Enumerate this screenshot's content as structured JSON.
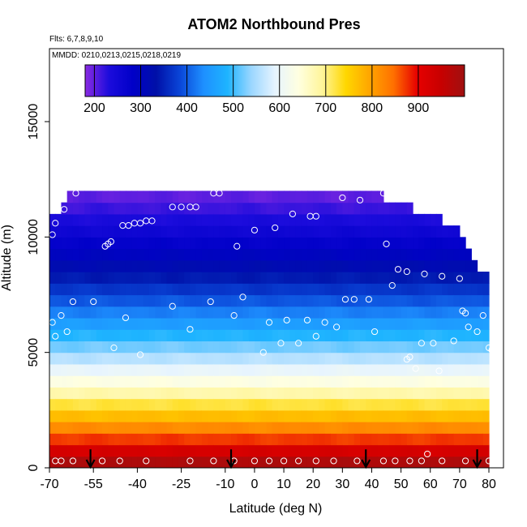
{
  "chart_data": {
    "type": "heatmap",
    "title": "ATOM2 Northbound Pres",
    "subtitle_flights": "Flts: 6,7,8,9,10",
    "subtitle_dates": "MMDD: 0210,0213,0215,0218,0219",
    "xlabel": "Latitude (deg N)",
    "ylabel": "Altitude (m)",
    "xlim": [
      -70,
      85
    ],
    "ylim": [
      0,
      17500
    ],
    "x_ticks": [
      -70,
      -55,
      -40,
      -25,
      -10,
      0,
      10,
      20,
      30,
      40,
      50,
      60,
      70,
      80
    ],
    "x_tick_labels": [
      "-70",
      "-55",
      "-40",
      "-25",
      "-10",
      "0",
      "10",
      "20",
      "30",
      "40",
      "50",
      "60",
      "70",
      "80"
    ],
    "y_ticks": [
      0,
      5000,
      10000,
      15000
    ],
    "y_tick_labels": [
      "0",
      "5000",
      "10000",
      "15000"
    ],
    "colorbar": {
      "min": 180,
      "max": 1000,
      "ticks": [
        200,
        300,
        400,
        500,
        600,
        700,
        800,
        900
      ],
      "tick_labels": [
        "200",
        "300",
        "400",
        "500",
        "600",
        "700",
        "800",
        "900"
      ],
      "colors": [
        "#8a2be2",
        "#1c0cdc",
        "#0000c8",
        "#0010a8",
        "#0a46d8",
        "#1e90ff",
        "#1eb4ff",
        "#9ad6ff",
        "#e6f4ff",
        "#ffffe0",
        "#fff59a",
        "#ffd700",
        "#ffa500",
        "#ff7000",
        "#e60000",
        "#c80000",
        "#a01010"
      ]
    },
    "coverage_top": [
      {
        "lat": -70,
        "alt": 10200
      },
      {
        "lat": -69,
        "alt": 10900
      },
      {
        "lat": -66,
        "alt": 11400
      },
      {
        "lat": -61,
        "alt": 12000
      },
      {
        "lat": -6,
        "alt": 12000
      },
      {
        "lat": 40,
        "alt": 11900
      },
      {
        "lat": 52,
        "alt": 11400
      },
      {
        "lat": 61,
        "alt": 10900
      },
      {
        "lat": 69,
        "alt": 10400
      },
      {
        "lat": 73,
        "alt": 9500
      },
      {
        "lat": 77,
        "alt": 8600
      },
      {
        "lat": 80,
        "alt": 8300
      }
    ],
    "observations": [
      {
        "lat": -69,
        "alt": 10100
      },
      {
        "lat": -68,
        "alt": 10600
      },
      {
        "lat": -65,
        "alt": 11200
      },
      {
        "lat": -61,
        "alt": 11900
      },
      {
        "lat": -51,
        "alt": 9600
      },
      {
        "lat": -50,
        "alt": 9700
      },
      {
        "lat": -49,
        "alt": 9800
      },
      {
        "lat": -45,
        "alt": 10500
      },
      {
        "lat": -43,
        "alt": 10500
      },
      {
        "lat": -41,
        "alt": 10600
      },
      {
        "lat": -39,
        "alt": 10600
      },
      {
        "lat": -37,
        "alt": 10700
      },
      {
        "lat": -35,
        "alt": 10700
      },
      {
        "lat": -28,
        "alt": 11300
      },
      {
        "lat": -25,
        "alt": 11300
      },
      {
        "lat": -22,
        "alt": 11300
      },
      {
        "lat": -20,
        "alt": 11300
      },
      {
        "lat": -14,
        "alt": 11900
      },
      {
        "lat": -12,
        "alt": 11900
      },
      {
        "lat": -6,
        "alt": 9600
      },
      {
        "lat": 0,
        "alt": 10300
      },
      {
        "lat": 7,
        "alt": 10400
      },
      {
        "lat": 13,
        "alt": 11000
      },
      {
        "lat": 19,
        "alt": 10900
      },
      {
        "lat": 21,
        "alt": 10900
      },
      {
        "lat": 30,
        "alt": 11700
      },
      {
        "lat": 36,
        "alt": 11600
      },
      {
        "lat": 44,
        "alt": 11900
      },
      {
        "lat": 45,
        "alt": 9700
      },
      {
        "lat": 47,
        "alt": 7900
      },
      {
        "lat": 49,
        "alt": 8600
      },
      {
        "lat": 52,
        "alt": 8500
      },
      {
        "lat": 58,
        "alt": 8400
      },
      {
        "lat": 64,
        "alt": 8300
      },
      {
        "lat": 70,
        "alt": 8200
      },
      {
        "lat": 76,
        "alt": 9400
      },
      {
        "lat": 84,
        "alt": 9300
      },
      {
        "lat": 86,
        "alt": 8600
      },
      {
        "lat": -69,
        "alt": 6300
      },
      {
        "lat": -68,
        "alt": 5700
      },
      {
        "lat": -66,
        "alt": 6600
      },
      {
        "lat": -64,
        "alt": 5900
      },
      {
        "lat": -62,
        "alt": 7200
      },
      {
        "lat": -55,
        "alt": 7200
      },
      {
        "lat": -48,
        "alt": 5200
      },
      {
        "lat": -44,
        "alt": 6500
      },
      {
        "lat": -39,
        "alt": 4900
      },
      {
        "lat": -28,
        "alt": 7000
      },
      {
        "lat": -22,
        "alt": 6000
      },
      {
        "lat": -15,
        "alt": 7200
      },
      {
        "lat": -7,
        "alt": 6600
      },
      {
        "lat": -4,
        "alt": 7400
      },
      {
        "lat": 3,
        "alt": 5000
      },
      {
        "lat": 5,
        "alt": 6300
      },
      {
        "lat": 9,
        "alt": 5400
      },
      {
        "lat": 11,
        "alt": 6400
      },
      {
        "lat": 15,
        "alt": 5400
      },
      {
        "lat": 18,
        "alt": 6400
      },
      {
        "lat": 21,
        "alt": 5700
      },
      {
        "lat": 24,
        "alt": 6300
      },
      {
        "lat": 28,
        "alt": 6100
      },
      {
        "lat": 31,
        "alt": 7300
      },
      {
        "lat": 34,
        "alt": 7300
      },
      {
        "lat": 39,
        "alt": 7300
      },
      {
        "lat": 41,
        "alt": 5900
      },
      {
        "lat": 52,
        "alt": 4700
      },
      {
        "lat": 53,
        "alt": 4800
      },
      {
        "lat": 55,
        "alt": 4300
      },
      {
        "lat": 57,
        "alt": 5400
      },
      {
        "lat": 61,
        "alt": 5400
      },
      {
        "lat": 63,
        "alt": 4200
      },
      {
        "lat": 68,
        "alt": 5500
      },
      {
        "lat": 71,
        "alt": 6800
      },
      {
        "lat": 72,
        "alt": 6700
      },
      {
        "lat": 73,
        "alt": 6100
      },
      {
        "lat": 76,
        "alt": 5900
      },
      {
        "lat": 78,
        "alt": 6600
      },
      {
        "lat": 80,
        "alt": 5200
      },
      {
        "lat": 81,
        "alt": 5100
      },
      {
        "lat": 83,
        "alt": 4200
      },
      {
        "lat": -68,
        "alt": 300
      },
      {
        "lat": -66,
        "alt": 300
      },
      {
        "lat": -62,
        "alt": 300
      },
      {
        "lat": -52,
        "alt": 300
      },
      {
        "lat": -46,
        "alt": 300
      },
      {
        "lat": -37,
        "alt": 300
      },
      {
        "lat": -22,
        "alt": 300
      },
      {
        "lat": -14,
        "alt": 300
      },
      {
        "lat": -7,
        "alt": 300
      },
      {
        "lat": 0,
        "alt": 300
      },
      {
        "lat": 5,
        "alt": 300
      },
      {
        "lat": 10,
        "alt": 300
      },
      {
        "lat": 15,
        "alt": 300
      },
      {
        "lat": 21,
        "alt": 300
      },
      {
        "lat": 27,
        "alt": 300
      },
      {
        "lat": 35,
        "alt": 300
      },
      {
        "lat": 44,
        "alt": 300
      },
      {
        "lat": 48,
        "alt": 300
      },
      {
        "lat": 53,
        "alt": 300
      },
      {
        "lat": 57,
        "alt": 300
      },
      {
        "lat": 59,
        "alt": 600
      },
      {
        "lat": 64,
        "alt": 300
      },
      {
        "lat": 72,
        "alt": 300
      },
      {
        "lat": 80,
        "alt": 300
      }
    ],
    "arrows": [
      {
        "lat": -56,
        "alt": 800
      },
      {
        "lat": -8,
        "alt": 800
      },
      {
        "lat": 38,
        "alt": 800
      },
      {
        "lat": 76,
        "alt": 800
      }
    ]
  }
}
